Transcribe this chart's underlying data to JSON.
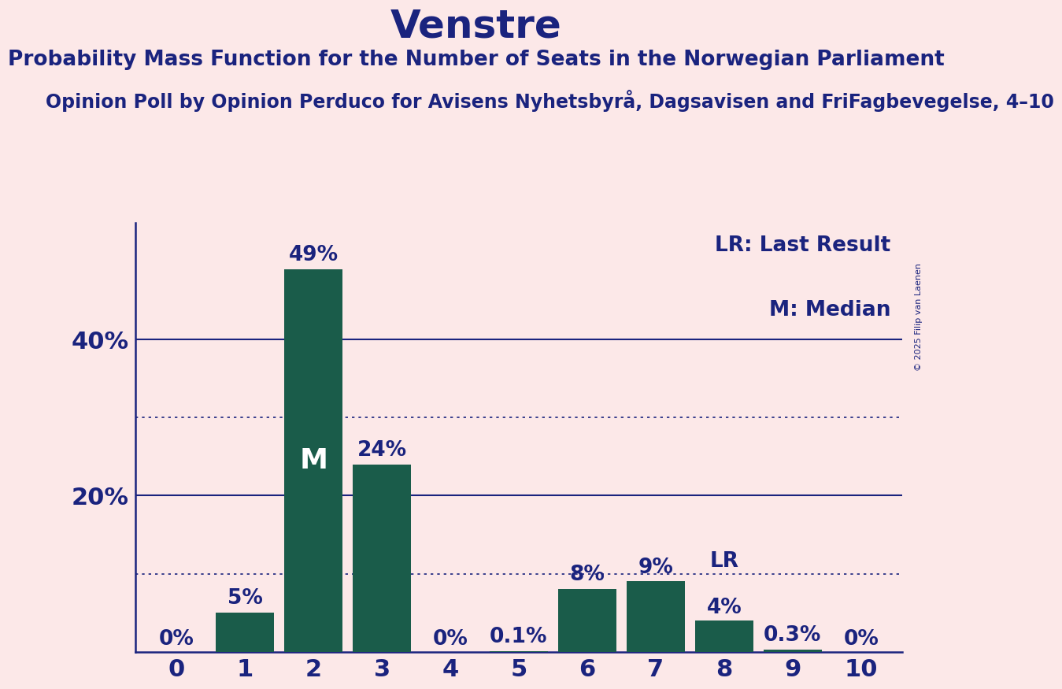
{
  "title": "Venstre",
  "subtitle": "Probability Mass Function for the Number of Seats in the Norwegian Parliament",
  "subsubtitle": "Opinion Poll by Opinion Perduco for Avisens Nyhetsbyrå, Dagsavisen and FriFagbevegelse, 4–10",
  "copyright": "© 2025 Filip van Laenen",
  "categories": [
    0,
    1,
    2,
    3,
    4,
    5,
    6,
    7,
    8,
    9,
    10
  ],
  "values": [
    0.0,
    5.0,
    49.0,
    24.0,
    0.0,
    0.1,
    8.0,
    9.0,
    4.0,
    0.3,
    0.0
  ],
  "bar_labels": [
    "0%",
    "5%",
    "49%",
    "24%",
    "0%",
    "0.1%",
    "8%",
    "9%",
    "4%",
    "0.3%",
    "0%"
  ],
  "bar_color": "#1a5c4a",
  "background_color": "#fce8e8",
  "text_color": "#1a237e",
  "median_bar": 2,
  "lr_bar": 8,
  "legend_lr": "LR: Last Result",
  "legend_m": "M: Median",
  "solid_yticks": [
    20,
    40
  ],
  "dotted_yticks": [
    10,
    30
  ],
  "ylim": [
    0,
    55
  ],
  "title_fontsize": 36,
  "subtitle_fontsize": 19,
  "subsubtitle_fontsize": 17,
  "axis_tick_fontsize": 22,
  "bar_label_fontsize": 19,
  "legend_fontsize": 19,
  "median_label_fontsize": 26,
  "lr_label_fontsize": 19
}
